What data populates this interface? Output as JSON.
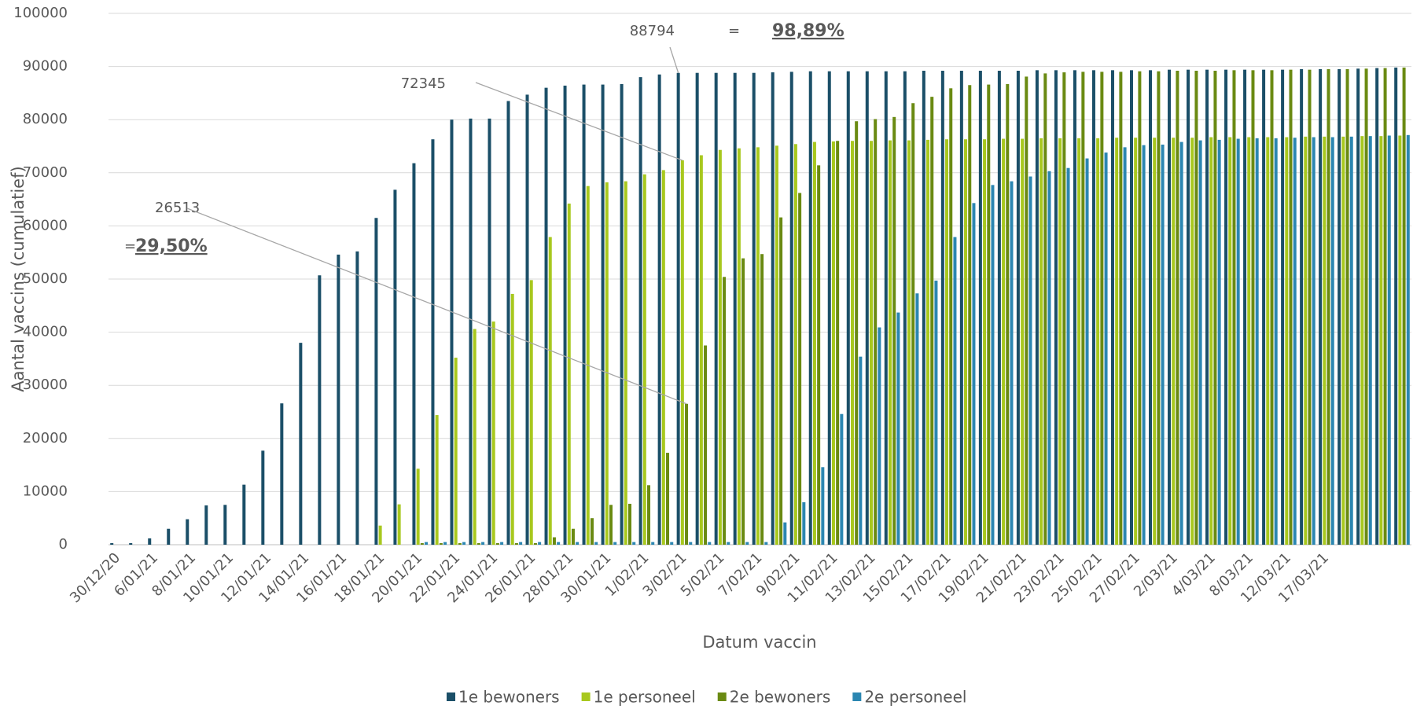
{
  "chart_data": {
    "type": "bar",
    "x_label": "Datum vaccin",
    "y_label": "Aantal vaccins (cumulatief)",
    "categories": [
      "30/12/20",
      null,
      "6/01/21",
      null,
      "8/01/21",
      null,
      "10/01/21",
      null,
      "12/01/21",
      null,
      "14/01/21",
      null,
      "16/01/21",
      null,
      "18/01/21",
      null,
      "20/01/21",
      null,
      "22/01/21",
      null,
      "24/01/21",
      null,
      "26/01/21",
      null,
      "28/01/21",
      null,
      "30/01/21",
      null,
      "1/02/21",
      null,
      "3/02/21",
      null,
      "5/02/21",
      null,
      "7/02/21",
      null,
      "9/02/21",
      null,
      "11/02/21",
      null,
      "13/02/21",
      null,
      "15/02/21",
      null,
      "17/02/21",
      null,
      "19/02/21",
      null,
      "21/02/21",
      null,
      "23/02/21",
      null,
      "25/02/21",
      null,
      "27/02/21",
      null,
      "2/03/21",
      null,
      "4/03/21",
      null,
      "8/03/21",
      null,
      "12/03/21",
      null,
      "17/03/21",
      null,
      null,
      null,
      null
    ],
    "series": [
      {
        "name": "1e bewoners",
        "color": "#1b4f68",
        "values": [
          300,
          300,
          1200,
          3000,
          4800,
          7400,
          7500,
          11300,
          17700,
          26600,
          38000,
          50700,
          54600,
          55200,
          61500,
          66800,
          71800,
          76300,
          80000,
          80200,
          80200,
          83500,
          84700,
          86000,
          86400,
          86600,
          86600,
          86700,
          88000,
          88500,
          88794,
          88800,
          88800,
          88800,
          88800,
          88900,
          89000,
          89100,
          89100,
          89100,
          89100,
          89100,
          89100,
          89200,
          89200,
          89200,
          89200,
          89200,
          89200,
          89300,
          89300,
          89300,
          89300,
          89300,
          89300,
          89300,
          89400,
          89400,
          89400,
          89400,
          89400,
          89400,
          89400,
          89500,
          89500,
          89500,
          89600,
          89700,
          89800
        ]
      },
      {
        "name": "1e personeel",
        "color": "#a8c81e",
        "values": [
          0,
          0,
          0,
          0,
          0,
          0,
          0,
          0,
          0,
          0,
          0,
          0,
          0,
          0,
          3600,
          7600,
          14300,
          24400,
          35200,
          40600,
          42000,
          47200,
          49800,
          57900,
          64200,
          67500,
          68200,
          68400,
          69700,
          70500,
          72345,
          73300,
          74300,
          74600,
          74800,
          75100,
          75400,
          75800,
          75900,
          76000,
          76000,
          76100,
          76100,
          76200,
          76300,
          76300,
          76300,
          76400,
          76400,
          76500,
          76500,
          76500,
          76500,
          76600,
          76600,
          76600,
          76600,
          76600,
          76700,
          76700,
          76700,
          76700,
          76700,
          76800,
          76800,
          76800,
          76900,
          76900,
          77000
        ]
      },
      {
        "name": "2e bewoners",
        "color": "#6a8a12",
        "values": [
          0,
          0,
          0,
          0,
          0,
          0,
          0,
          0,
          0,
          0,
          0,
          0,
          0,
          0,
          0,
          0,
          300,
          300,
          300,
          300,
          300,
          300,
          300,
          1400,
          3000,
          5000,
          7500,
          7700,
          11200,
          17300,
          26513,
          37500,
          50400,
          53900,
          54700,
          61600,
          66200,
          71400,
          76000,
          79700,
          80100,
          80500,
          83100,
          84300,
          85900,
          86500,
          86600,
          86700,
          88100,
          88700,
          88900,
          89000,
          89000,
          89000,
          89100,
          89100,
          89200,
          89200,
          89200,
          89300,
          89300,
          89300,
          89400,
          89400,
          89500,
          89500,
          89600,
          89700,
          89800
        ]
      },
      {
        "name": "2e personeel",
        "color": "#2b86b1",
        "values": [
          0,
          0,
          0,
          0,
          0,
          0,
          0,
          0,
          0,
          0,
          0,
          0,
          0,
          0,
          0,
          0,
          500,
          500,
          500,
          500,
          500,
          500,
          500,
          500,
          500,
          500,
          500,
          500,
          500,
          500,
          500,
          500,
          500,
          500,
          500,
          4200,
          8000,
          14600,
          24600,
          35400,
          40900,
          43700,
          47300,
          49700,
          57900,
          64300,
          67700,
          68400,
          69300,
          70300,
          70900,
          72700,
          73800,
          74800,
          75200,
          75300,
          75800,
          76100,
          76200,
          76400,
          76500,
          76500,
          76600,
          76700,
          76700,
          76800,
          76900,
          77000,
          77100
        ]
      }
    ],
    "ylim": [
      0,
      100000
    ],
    "yticks": [
      0,
      10000,
      20000,
      30000,
      40000,
      50000,
      60000,
      70000,
      80000,
      90000,
      100000
    ],
    "grid": true,
    "legend": "bottom",
    "annotations": [
      "88794",
      "=",
      "98,89%",
      "72345",
      "26513",
      "=",
      "29,50%"
    ]
  }
}
